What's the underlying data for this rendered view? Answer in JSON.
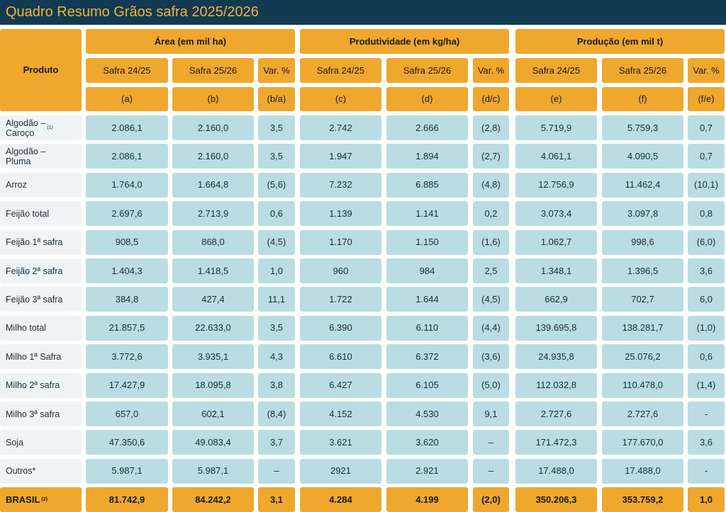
{
  "header": {
    "title": "Quadro Resumo Grãos safra 2025/2026"
  },
  "table": {
    "product_header": "Produto",
    "groups": [
      "Área (em mil ha)",
      "Produtividade (em kg/ha)",
      "Produção (em mil t)"
    ],
    "subheaders": [
      "Safra 24/25",
      "Safra 25/26",
      "Var. %",
      "Safra 24/25",
      "Safra 25/26",
      "Var. %",
      "Safra 24/25",
      "Safra 25/26",
      "Var. %"
    ],
    "letters": [
      "(a)",
      "(b)",
      "(b/a)",
      "(c)",
      "(d)",
      "(d/c)",
      "(e)",
      "(f)",
      "(f/e)"
    ],
    "rows": [
      {
        "product": "Algodão –\nCaroço",
        "note": "(1)",
        "cells": [
          "2.086,1",
          "2.160,0",
          "3,5",
          "2.742",
          "2.666",
          "(2,8)",
          "5.719,9",
          "5.759,3",
          "0,7"
        ]
      },
      {
        "product": "Algodão –\nPluma",
        "cells": [
          "2.086,1",
          "2.160,0",
          "3,5",
          "1.947",
          "1.894",
          "(2,7)",
          "4.061,1",
          "4.090,5",
          "0,7"
        ]
      },
      {
        "product": "Arroz",
        "cells": [
          "1.764,0",
          "1.664,8",
          "(5,6)",
          "7.232",
          "6.885",
          "(4,8)",
          "12.756,9",
          "11.462,4",
          "(10,1)"
        ]
      },
      {
        "product": "Feijão total",
        "cells": [
          "2.697,6",
          "2.713,9",
          "0,6",
          "1.139",
          "1.141",
          "0,2",
          "3.073,4",
          "3.097,8",
          "0,8"
        ]
      },
      {
        "product": "Feijão 1ª safra",
        "cells": [
          "908,5",
          "868,0",
          "(4,5)",
          "1.170",
          "1.150",
          "(1,6)",
          "1.062,7",
          "998,6",
          "(6,0)"
        ]
      },
      {
        "product": "Feijão 2ª safra",
        "cells": [
          "1.404,3",
          "1.418,5",
          "1,0",
          "960",
          "984",
          "2,5",
          "1.348,1",
          "1.396,5",
          "3,6"
        ]
      },
      {
        "product": "Feijão 3ª safra",
        "cells": [
          "384,8",
          "427,4",
          "11,1",
          "1.722",
          "1.644",
          "(4,5)",
          "662,9",
          "702,7",
          "6,0"
        ]
      },
      {
        "product": "Milho total",
        "cells": [
          "21.857,5",
          "22.633,0",
          "3,5",
          "6.390",
          "6.110",
          "(4,4)",
          "139.695,8",
          "138.281,7",
          "(1,0)"
        ]
      },
      {
        "product": "Milho 1ª Safra",
        "cells": [
          "3.772,6",
          "3.935,1",
          "4,3",
          "6.610",
          "6.372",
          "(3,6)",
          "24.935,8",
          "25.076,2",
          "0,6"
        ]
      },
      {
        "product": "Milho 2ª safra",
        "cells": [
          "17.427,9",
          "18.095,8",
          "3,8",
          "6.427",
          "6.105",
          "(5,0)",
          "112.032,8",
          "110.478,0",
          "(1,4)"
        ]
      },
      {
        "product": "Milho 3ª safra",
        "cells": [
          "657,0",
          "602,1",
          "(8,4)",
          "4.152",
          "4.530",
          "9,1",
          "2.727,6",
          "2.727,6",
          "-"
        ]
      },
      {
        "product": "Soja",
        "cells": [
          "47.350,6",
          "49.083,4",
          "3,7",
          "3.621",
          "3.620",
          "–",
          "171.472,3",
          "177.670,0",
          "3,6"
        ]
      },
      {
        "product": "Outros*",
        "cells": [
          "5.987,1",
          "5.987,1",
          "–",
          "2921",
          "2.921",
          "–",
          "17.488,0",
          "17.488,0",
          "-"
        ]
      }
    ],
    "total": {
      "product": "BRASIL",
      "note": "(2)",
      "cells": [
        "81.742,9",
        "84.242,2",
        "3,1",
        "4.284",
        "4.199",
        "(2,0)",
        "350.206,3",
        "353.759,2",
        "1,0"
      ]
    }
  }
}
